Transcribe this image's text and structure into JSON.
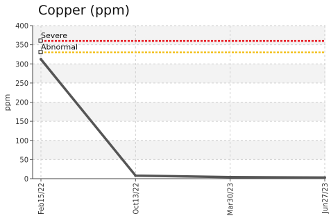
{
  "chart_data": {
    "type": "line",
    "title": "Copper (ppm)",
    "xlabel": "",
    "ylabel": "ppm",
    "ylim": [
      0,
      400
    ],
    "yticks": [
      0,
      50,
      100,
      150,
      200,
      250,
      300,
      350,
      400
    ],
    "categories": [
      "Feb15/22",
      "Oct13/22",
      "Mar30/23",
      "Jun27/23"
    ],
    "series": [
      {
        "values": [
          312,
          8,
          4,
          3
        ],
        "color": "#555555"
      }
    ],
    "thresholds": [
      {
        "label": "Severe",
        "value": 360,
        "color": "#e8141c"
      },
      {
        "label": "Abnormal",
        "value": 330,
        "color": "#f2c01e"
      }
    ],
    "grid": true,
    "alternating_bands": true
  }
}
